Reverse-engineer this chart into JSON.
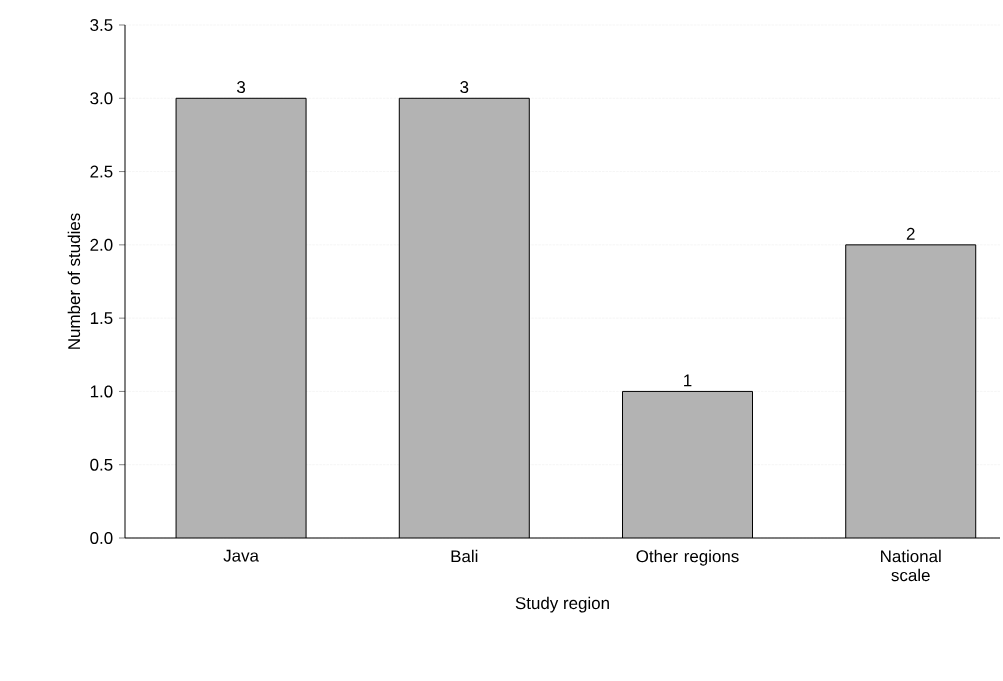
{
  "chart_data": {
    "type": "bar",
    "xlabel": "Study region",
    "ylabel": "Number of studies",
    "categories": [
      "Java",
      "Bali",
      "Other regions",
      "National scale"
    ],
    "values": [
      3,
      3,
      1,
      2
    ],
    "color": "#b3b3b3",
    "ylim": [
      0,
      3.5
    ],
    "yticks": [
      {
        "value": 0,
        "label": "0.0"
      },
      0.5,
      {
        "value": 1,
        "label": "1.0"
      },
      1.5,
      {
        "value": 2,
        "label": "2.0"
      },
      2.5,
      {
        "value": 3,
        "label": "3.0"
      },
      3.5
    ],
    "grid": "y",
    "data_labels": true
  }
}
